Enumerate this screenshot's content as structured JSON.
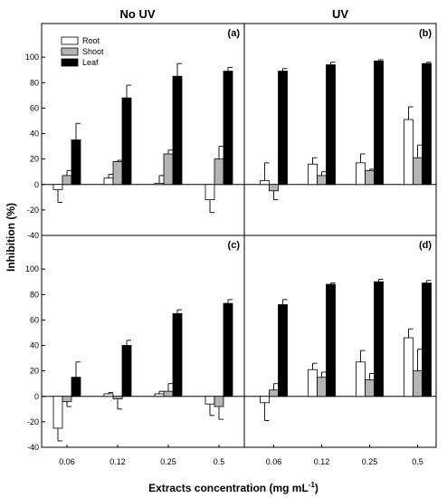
{
  "figure": {
    "column_headers": [
      "No UV",
      "UV"
    ],
    "ylabel": "Inhibition (%)",
    "xlabel": "Extracts concentration (mg mL",
    "xlabel_superscript": "-1",
    "xlabel_suffix": ")"
  },
  "chart_data": [
    {
      "type": "bar",
      "panel": "(a)",
      "column": "No UV",
      "categories": [
        "0.06",
        "0.12",
        "0.25",
        "0.5"
      ],
      "ylim": [
        -40,
        120
      ],
      "yticks": [
        -40,
        -20,
        0,
        20,
        40,
        60,
        80,
        100
      ],
      "legend_placement": "top-left",
      "series": [
        {
          "name": "Root",
          "values": [
            -4,
            5,
            1,
            -12
          ],
          "errors": [
            10,
            3,
            6,
            10
          ]
        },
        {
          "name": "Shoot",
          "values": [
            7,
            18,
            24,
            20
          ],
          "errors": [
            4,
            1,
            3,
            10
          ]
        },
        {
          "name": "Leaf",
          "values": [
            35,
            68,
            85,
            89
          ],
          "errors": [
            13,
            10,
            10,
            3
          ]
        }
      ]
    },
    {
      "type": "bar",
      "panel": "(b)",
      "column": "UV",
      "categories": [
        "0.06",
        "0.12",
        "0.25",
        "0.5"
      ],
      "ylim": [
        -40,
        120
      ],
      "series": [
        {
          "name": "Root",
          "values": [
            3,
            16,
            17,
            51
          ],
          "errors": [
            14,
            5,
            7,
            10
          ]
        },
        {
          "name": "Shoot",
          "values": [
            -5,
            7,
            11,
            21
          ],
          "errors": [
            7,
            3,
            1,
            10
          ]
        },
        {
          "name": "Leaf",
          "values": [
            89,
            94,
            97,
            95
          ],
          "errors": [
            2,
            2,
            1,
            1
          ]
        }
      ]
    },
    {
      "type": "bar",
      "panel": "(c)",
      "column": "No UV",
      "categories": [
        "0.06",
        "0.12",
        "0.25",
        "0.5"
      ],
      "ylim": [
        -40,
        120
      ],
      "yticks": [
        -40,
        -20,
        0,
        20,
        40,
        60,
        80,
        100
      ],
      "series": [
        {
          "name": "Root",
          "values": [
            -25,
            2,
            2,
            -6
          ],
          "errors": [
            10,
            1,
            2,
            9
          ]
        },
        {
          "name": "Shoot",
          "values": [
            -4,
            -2,
            4,
            -8
          ],
          "errors": [
            4,
            8,
            6,
            10
          ]
        },
        {
          "name": "Leaf",
          "values": [
            15,
            40,
            65,
            73
          ],
          "errors": [
            12,
            4,
            3,
            3
          ]
        }
      ]
    },
    {
      "type": "bar",
      "panel": "(d)",
      "column": "UV",
      "categories": [
        "0.06",
        "0.12",
        "0.25",
        "0.5"
      ],
      "ylim": [
        -40,
        120
      ],
      "series": [
        {
          "name": "Root",
          "values": [
            -5,
            21,
            27,
            46
          ],
          "errors": [
            14,
            5,
            9,
            7
          ]
        },
        {
          "name": "Shoot",
          "values": [
            5,
            15,
            13,
            20
          ],
          "errors": [
            5,
            4,
            5,
            17
          ]
        },
        {
          "name": "Leaf",
          "values": [
            72,
            88,
            90,
            89
          ],
          "errors": [
            4,
            1,
            2,
            2
          ]
        }
      ]
    }
  ],
  "colors": {
    "Root": "#ffffff",
    "Shoot": "#b4b4b4",
    "Leaf": "#000000",
    "stroke": "#000000"
  }
}
